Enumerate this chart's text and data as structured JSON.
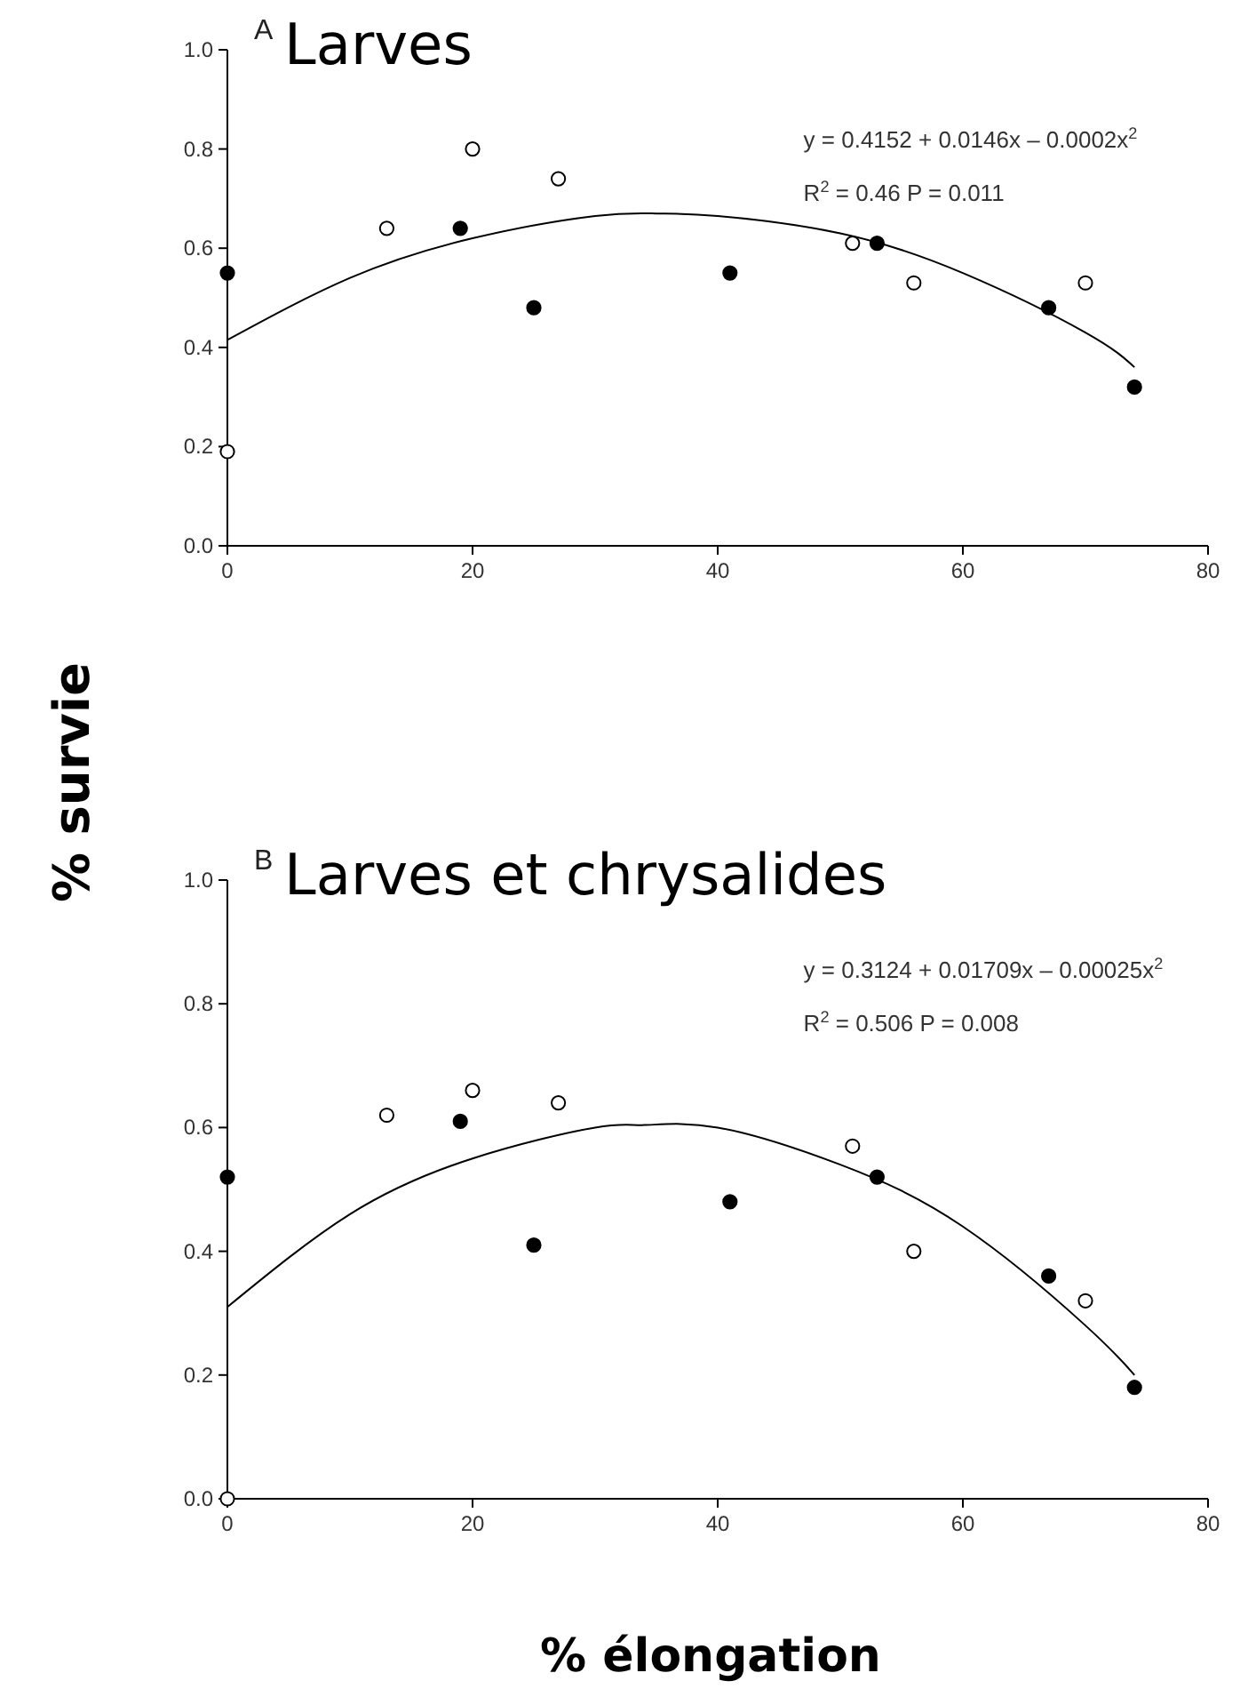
{
  "chart_data": [
    {
      "type": "scatter",
      "title": "Larves",
      "ylabel": "% survie",
      "annotations": [
        "A",
        "y = 0.4152 + 0.0146x – 0.0002x$^{2}$",
        "R$^{2}$ = 0.46 P = 0.011"
      ],
      "xlim": [
        0,
        80
      ],
      "xticks": [
        0,
        20,
        40,
        60,
        80
      ],
      "ylim": [
        0,
        1
      ],
      "yticks": [
        {
          "value": 0,
          "label": "0.0"
        },
        {
          "value": 0.2,
          "label": "0.2"
        },
        {
          "value": 0.4,
          "label": "0.4"
        },
        {
          "value": 0.6,
          "label": "0.6"
        },
        {
          "value": 0.8,
          "label": "0.8"
        },
        {
          "value": 1,
          "label": "1.0"
        }
      ],
      "marker": "circle",
      "series": [
        {
          "color": "#000000",
          "x": [
            0,
            19,
            25,
            41,
            53,
            67,
            74
          ],
          "values": [
            0.55,
            0.64,
            0.48,
            0.55,
            0.61,
            0.48,
            0.32
          ]
        },
        {
          "color": "#ffffff",
          "x": [
            0,
            13,
            20,
            27,
            51,
            56,
            70
          ],
          "values": [
            0.19,
            0.64,
            0.8,
            0.74,
            0.61,
            0.53,
            0.53
          ]
        },
        {
          "type": "line",
          "marker": "none",
          "color": "#000000",
          "x": [
            0,
            10,
            20,
            30,
            35,
            40,
            50,
            60,
            70,
            74
          ],
          "values": [
            0.415,
            0.54,
            0.62,
            0.665,
            0.67,
            0.665,
            0.63,
            0.55,
            0.43,
            0.36
          ]
        }
      ]
    },
    {
      "type": "scatter",
      "title": "Larves et chrysalides",
      "xlabel": "% élongation",
      "annotations": [
        "B",
        "y = 0.3124 + 0.01709x – 0.00025x$^{2}$",
        "R$^{2}$ = 0.506 P = 0.008"
      ],
      "xlim": [
        0,
        80
      ],
      "xticks": [
        0,
        20,
        40,
        60,
        80
      ],
      "ylim": [
        0,
        1
      ],
      "yticks": [
        {
          "value": 0,
          "label": "0.0"
        },
        {
          "value": 0.2,
          "label": "0.2"
        },
        {
          "value": 0.4,
          "label": "0.4"
        },
        {
          "value": 0.6,
          "label": "0.6"
        },
        {
          "value": 0.8,
          "label": "0.8"
        },
        {
          "value": 1,
          "label": "1.0"
        }
      ],
      "marker": "circle",
      "series": [
        {
          "color": "#000000",
          "x": [
            0,
            19,
            25,
            41,
            53,
            67,
            74
          ],
          "values": [
            0.52,
            0.61,
            0.41,
            0.48,
            0.52,
            0.36,
            0.18
          ]
        },
        {
          "color": "#ffffff",
          "x": [
            0,
            13,
            20,
            27,
            51,
            56,
            70
          ],
          "values": [
            0,
            0.62,
            0.66,
            0.64,
            0.57,
            0.4,
            0.32
          ]
        },
        {
          "type": "line",
          "marker": "none",
          "color": "#000000",
          "x": [
            0,
            10,
            20,
            30,
            34,
            40,
            50,
            60,
            70,
            74
          ],
          "values": [
            0.31,
            0.46,
            0.55,
            0.6,
            0.604,
            0.6,
            0.54,
            0.44,
            0.28,
            0.2
          ]
        }
      ]
    }
  ]
}
